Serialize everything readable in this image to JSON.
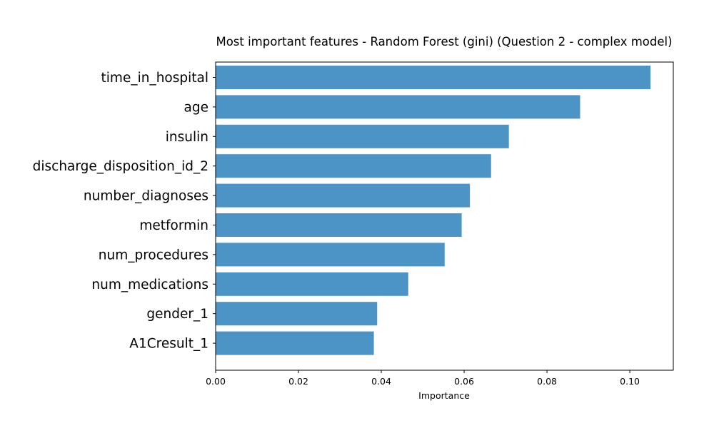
{
  "chart_data": {
    "type": "bar",
    "orientation": "horizontal",
    "title": "Most important features - Random Forest (gini) (Question 2 - complex model)",
    "xlabel": "Importance",
    "ylabel": "",
    "xlim": [
      0,
      0.1105
    ],
    "xticks": [
      0.0,
      0.02,
      0.04,
      0.06,
      0.08,
      0.1
    ],
    "xtick_labels": [
      "0.00",
      "0.02",
      "0.04",
      "0.06",
      "0.08",
      "0.10"
    ],
    "grid": false,
    "bar_color": "#4c93c6",
    "categories": [
      "time_in_hospital",
      "age",
      "insulin",
      "discharge_disposition_id_2",
      "number_diagnoses",
      "metformin",
      "num_procedures",
      "num_medications",
      "gender_1",
      "A1Cresult_1"
    ],
    "values": [
      0.105,
      0.088,
      0.0708,
      0.0665,
      0.0614,
      0.0594,
      0.0553,
      0.0465,
      0.039,
      0.0382
    ]
  }
}
